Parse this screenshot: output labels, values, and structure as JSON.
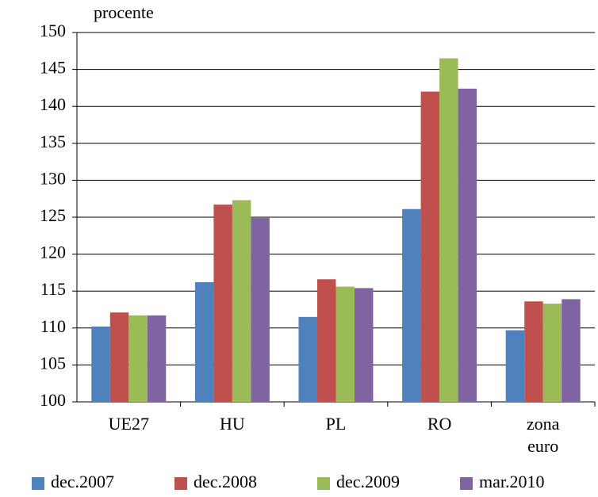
{
  "chart_data": {
    "type": "bar",
    "y_label": "procente",
    "categories": [
      "UE27",
      "HU",
      "PL",
      "RO",
      "zona euro"
    ],
    "series": [
      {
        "name": "dec.2007",
        "color": "#4f81bd",
        "values": [
          110.2,
          116.2,
          111.5,
          126.1,
          109.7
        ]
      },
      {
        "name": "dec.2008",
        "color": "#c0504d",
        "values": [
          112.1,
          126.7,
          116.6,
          142.0,
          113.6
        ]
      },
      {
        "name": "dec.2009",
        "color": "#9bbb59",
        "values": [
          111.7,
          127.3,
          115.6,
          146.5,
          113.3
        ]
      },
      {
        "name": "mar.2010",
        "color": "#8064a2",
        "values": [
          111.7,
          124.9,
          115.4,
          142.4,
          113.9
        ]
      }
    ],
    "ylim": [
      100,
      150
    ],
    "yticks": [
      100,
      105,
      110,
      115,
      120,
      125,
      130,
      135,
      140,
      145,
      150
    ],
    "grid": true,
    "legend": "bottom"
  }
}
